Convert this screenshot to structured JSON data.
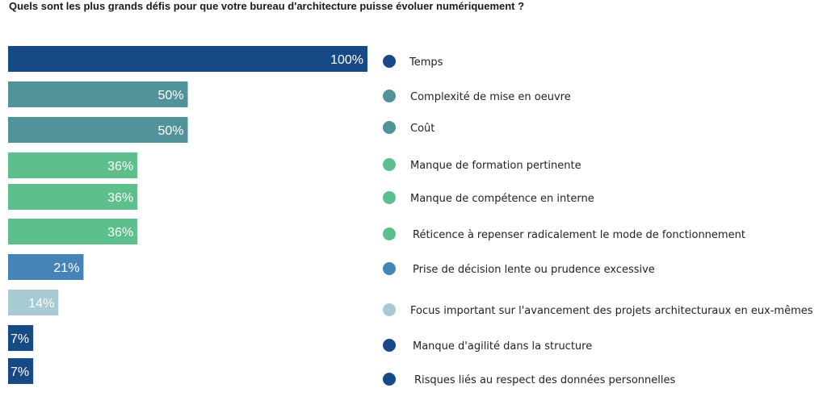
{
  "chart_data": {
    "type": "bar",
    "orientation": "horizontal",
    "title": "Quels sont les plus grands défis pour que votre bureau d'architecture puisse évoluer numériquement ?",
    "xlim": [
      0,
      100
    ],
    "unit": "%",
    "grid": false,
    "legend_position": "right",
    "categories": [
      "Temps",
      "Complexité de mise en oeuvre",
      "Coût",
      "Manque de formation pertinente",
      "Manque de compétence en interne",
      "Réticence à repenser radicalement le mode de fonctionnement",
      "Prise de décision lente ou prudence excessive",
      "Focus important sur l'avancement des projets architecturaux en eux-mêmes",
      "Manque d'agilité dans la structure",
      "Risques liés au respect des données personnelles"
    ],
    "values": [
      100,
      50,
      50,
      36,
      36,
      36,
      21,
      14,
      7,
      7
    ],
    "labels": [
      "100%",
      "50%",
      "50%",
      "36%",
      "36%",
      "36%",
      "21%",
      "14%",
      "7%",
      "7%"
    ],
    "colors": [
      "#174a84",
      "#52939b",
      "#52939b",
      "#5cbf8c",
      "#5cbf8c",
      "#5cbf8c",
      "#4683b7",
      "#a8cad2",
      "#174a84",
      "#174a84"
    ]
  }
}
